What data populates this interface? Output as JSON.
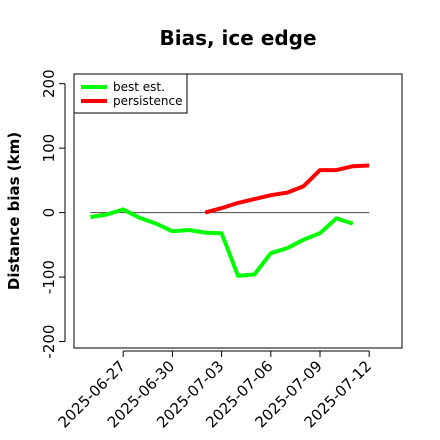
{
  "chart_data": {
    "type": "line",
    "title": "Bias, ice edge",
    "xlabel": "",
    "ylabel": "Distance bias (km)",
    "xlim": [
      "2025-06-24",
      "2025-07-14"
    ],
    "ylim": [
      -210,
      215
    ],
    "x_ticks": [
      "2025-06-27",
      "2025-06-30",
      "2025-07-03",
      "2025-07-06",
      "2025-07-09",
      "2025-07-12"
    ],
    "y_ticks": [
      -200,
      -100,
      0,
      100,
      200
    ],
    "reference_line": 0,
    "grid": false,
    "legend_position": "top-left",
    "series": [
      {
        "name": "best est.",
        "color": "#00ff00",
        "x": [
          "2025-06-25",
          "2025-06-26",
          "2025-06-27",
          "2025-06-28",
          "2025-06-29",
          "2025-06-30",
          "2025-07-01",
          "2025-07-02",
          "2025-07-03",
          "2025-07-04",
          "2025-07-05",
          "2025-07-06",
          "2025-07-07",
          "2025-07-08",
          "2025-07-09",
          "2025-07-10",
          "2025-07-11",
          "2025-07-12"
        ],
        "y": [
          -7,
          -3,
          5,
          -8,
          -17,
          -29,
          -27,
          -31,
          -32,
          -98,
          -96,
          -63,
          -55,
          -42,
          -32,
          -9,
          -17,
          null
        ]
      },
      {
        "name": "persistence",
        "color": "#ff0000",
        "x": [
          "2025-07-02",
          "2025-07-03",
          "2025-07-04",
          "2025-07-05",
          "2025-07-06",
          "2025-07-07",
          "2025-07-08",
          "2025-07-09",
          "2025-07-10",
          "2025-07-11",
          "2025-07-12"
        ],
        "y": [
          0,
          7,
          15,
          21,
          27,
          31,
          41,
          66,
          66,
          72,
          73
        ]
      }
    ]
  }
}
